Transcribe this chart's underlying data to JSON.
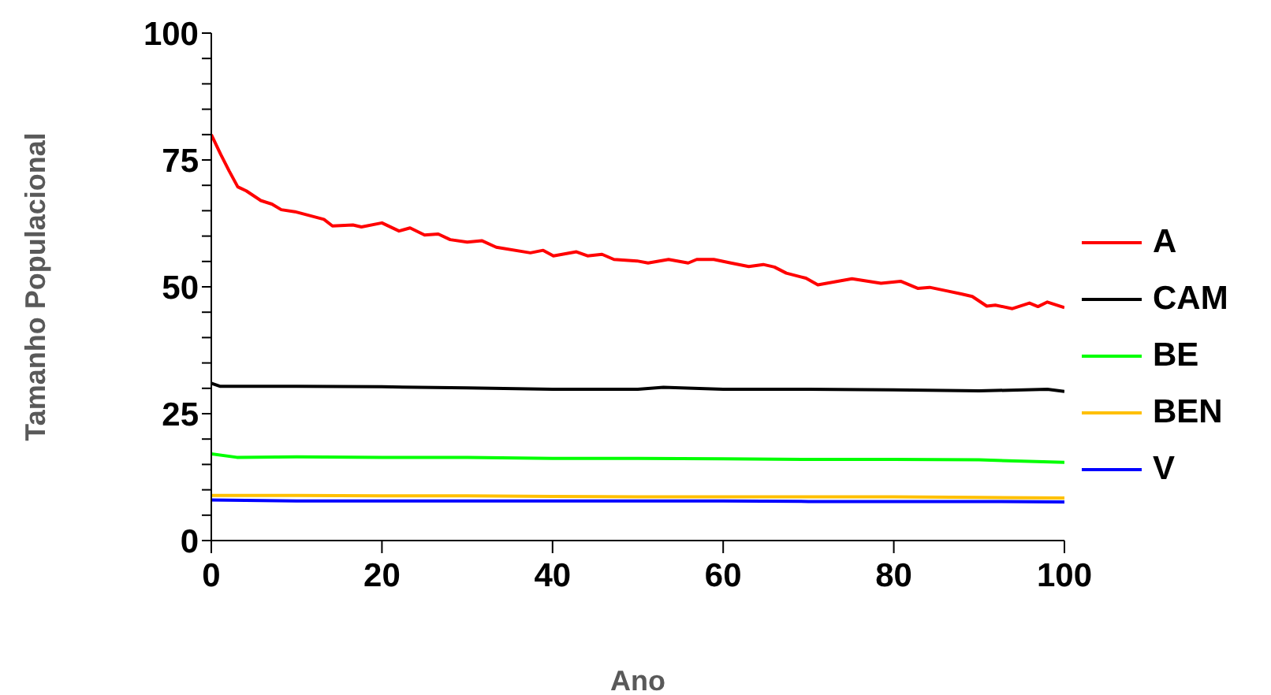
{
  "chart_data": {
    "type": "line",
    "xlabel": "Ano",
    "ylabel": "Tamanho Populacional",
    "xlim": [
      0,
      100
    ],
    "xticks": [
      0,
      20,
      40,
      60,
      80,
      100
    ],
    "ylim": [
      0,
      100
    ],
    "yticks": [
      0,
      {
        "value": 5,
        "label": null
      },
      {
        "value": 10,
        "label": null
      },
      {
        "value": 15,
        "label": null
      },
      {
        "value": 20,
        "label": null
      },
      25,
      {
        "value": 30,
        "label": null
      },
      {
        "value": 35,
        "label": null
      },
      {
        "value": 40,
        "label": null
      },
      {
        "value": 45,
        "label": null
      },
      50,
      {
        "value": 55,
        "label": null
      },
      {
        "value": 60,
        "label": null
      },
      {
        "value": 65,
        "label": null
      },
      {
        "value": 70,
        "label": null
      },
      75,
      {
        "value": 80,
        "label": null
      },
      {
        "value": 85,
        "label": null
      },
      {
        "value": 90,
        "label": null
      },
      {
        "value": 95,
        "label": null
      },
      100
    ],
    "legend": "right",
    "grid": false,
    "marker": "none",
    "line_style": "solid",
    "series": [
      {
        "name": "A",
        "color": "#ff0000",
        "x": [
          0,
          1.1,
          2.1,
          3.1,
          4.1,
          5.8,
          7.1,
          8.2,
          9.8,
          13.2,
          14.2,
          16.6,
          17.6,
          20,
          22,
          23.3,
          25,
          26.6,
          28,
          30,
          31.7,
          33.4,
          37.4,
          38.9,
          40.1,
          42.8,
          44.1,
          45.8,
          47.2,
          49.9,
          51.2,
          53.6,
          55.9,
          56.9,
          58.9,
          60.9,
          63,
          64.7,
          66,
          67.4,
          69.7,
          71.1,
          75.1,
          78.5,
          80.8,
          82.8,
          84.2,
          86.2,
          87.9,
          89.2,
          90.9,
          91.9,
          93.9,
          95.9,
          96.9,
          98,
          100
        ],
        "values": [
          80,
          76.1,
          72.8,
          69.7,
          68.9,
          67,
          66.3,
          65.2,
          64.8,
          63.3,
          62,
          62.2,
          61.8,
          62.6,
          61,
          61.6,
          60.2,
          60.4,
          59.3,
          58.8,
          59.1,
          57.8,
          56.7,
          57.2,
          56.1,
          56.9,
          56.1,
          56.4,
          55.4,
          55.1,
          54.7,
          55.4,
          54.7,
          55.4,
          55.4,
          54.7,
          54,
          54.4,
          53.9,
          52.7,
          51.7,
          50.4,
          51.6,
          50.7,
          51.1,
          49.7,
          49.9,
          49.2,
          48.6,
          48.1,
          46.2,
          46.4,
          45.7,
          46.8,
          46.1,
          47,
          45.9
        ]
      },
      {
        "name": "CAM",
        "color": "#000000",
        "x": [
          0,
          1,
          10,
          20,
          30,
          40,
          50,
          53,
          60,
          70,
          80,
          90,
          98,
          100
        ],
        "values": [
          31,
          30.4,
          30.4,
          30.3,
          30.1,
          29.8,
          29.8,
          30.2,
          29.8,
          29.8,
          29.7,
          29.5,
          29.8,
          29.4
        ]
      },
      {
        "name": "BE",
        "color": "#00ff00",
        "x": [
          0,
          3,
          10,
          20,
          30,
          40,
          50,
          60,
          70,
          80,
          90,
          100
        ],
        "values": [
          17.1,
          16.4,
          16.5,
          16.4,
          16.4,
          16.2,
          16.2,
          16.1,
          16,
          16,
          15.9,
          15.4
        ]
      },
      {
        "name": "BEN",
        "color": "#ffc000",
        "x": [
          0,
          10,
          20,
          30,
          40,
          50,
          60,
          70,
          80,
          90,
          100
        ],
        "values": [
          8.9,
          8.9,
          8.8,
          8.8,
          8.7,
          8.6,
          8.6,
          8.6,
          8.6,
          8.5,
          8.4
        ]
      },
      {
        "name": "V",
        "color": "#0000ff",
        "x": [
          0,
          10,
          20,
          30,
          40,
          50,
          60,
          70,
          80,
          90,
          100
        ],
        "values": [
          8,
          7.8,
          7.8,
          7.8,
          7.8,
          7.8,
          7.8,
          7.7,
          7.7,
          7.7,
          7.6
        ]
      }
    ]
  }
}
